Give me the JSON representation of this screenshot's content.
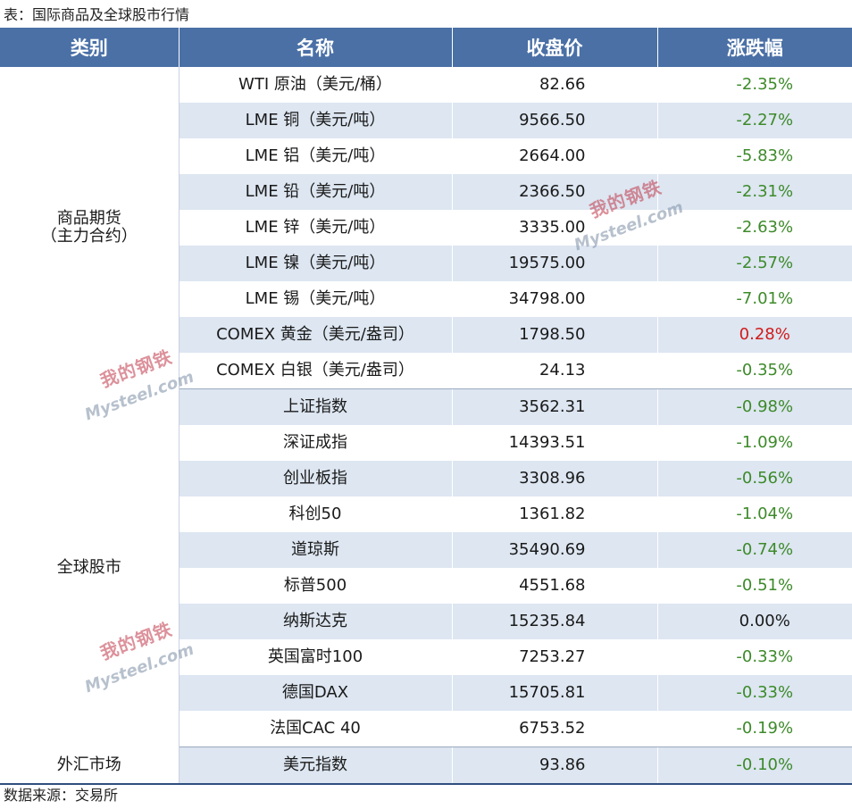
{
  "caption": "表：国际商品及全球股市行情",
  "footer": "数据来源：交易所",
  "watermark": {
    "cn": "我的钢铁",
    "en": "Mysteel.com"
  },
  "colors": {
    "header_bg": "#4a70a6",
    "row_alt": "#dde6f1",
    "down": "#3d8a2a",
    "up": "#d11b1b"
  },
  "table": {
    "headers": [
      "类别",
      "名称",
      "收盘价",
      "涨跌幅"
    ],
    "groups": [
      {
        "category_lines": [
          "商品期货",
          "（主力合约）"
        ],
        "rows": [
          {
            "name": "WTI 原油（美元/桶）",
            "close": "82.66",
            "change": "-2.35%",
            "dir": "down"
          },
          {
            "name": "LME 铜（美元/吨）",
            "close": "9566.50",
            "change": "-2.27%",
            "dir": "down"
          },
          {
            "name": "LME 铝（美元/吨）",
            "close": "2664.00",
            "change": "-5.83%",
            "dir": "down"
          },
          {
            "name": "LME 铅（美元/吨）",
            "close": "2366.50",
            "change": "-2.31%",
            "dir": "down"
          },
          {
            "name": "LME 锌（美元/吨）",
            "close": "3335.00",
            "change": "-2.63%",
            "dir": "down"
          },
          {
            "name": "LME 镍（美元/吨）",
            "close": "19575.00",
            "change": "-2.57%",
            "dir": "down"
          },
          {
            "name": "LME 锡（美元/吨）",
            "close": "34798.00",
            "change": "-7.01%",
            "dir": "down"
          },
          {
            "name": "COMEX 黄金（美元/盎司）",
            "close": "1798.50",
            "change": "0.28%",
            "dir": "up"
          },
          {
            "name": "COMEX 白银（美元/盎司）",
            "close": "24.13",
            "change": "-0.35%",
            "dir": "down"
          }
        ]
      },
      {
        "category_lines": [
          "全球股市"
        ],
        "rows": [
          {
            "name": "上证指数",
            "close": "3562.31",
            "change": "-0.98%",
            "dir": "down"
          },
          {
            "name": "深证成指",
            "close": "14393.51",
            "change": "-1.09%",
            "dir": "down"
          },
          {
            "name": "创业板指",
            "close": "3308.96",
            "change": "-0.56%",
            "dir": "down"
          },
          {
            "name": "科创50",
            "close": "1361.82",
            "change": "-1.04%",
            "dir": "down"
          },
          {
            "name": "道琼斯",
            "close": "35490.69",
            "change": "-0.74%",
            "dir": "down"
          },
          {
            "name": "标普500",
            "close": "4551.68",
            "change": "-0.51%",
            "dir": "down"
          },
          {
            "name": "纳斯达克",
            "close": "15235.84",
            "change": "0.00%",
            "dir": "flat"
          },
          {
            "name": "英国富时100",
            "close": "7253.27",
            "change": "-0.33%",
            "dir": "down"
          },
          {
            "name": "德国DAX",
            "close": "15705.81",
            "change": "-0.33%",
            "dir": "down"
          },
          {
            "name": "法国CAC 40",
            "close": "6753.52",
            "change": "-0.19%",
            "dir": "down"
          }
        ]
      },
      {
        "category_lines": [
          "外汇市场"
        ],
        "rows": [
          {
            "name": "美元指数",
            "close": "93.86",
            "change": "-0.10%",
            "dir": "down"
          }
        ]
      }
    ]
  }
}
